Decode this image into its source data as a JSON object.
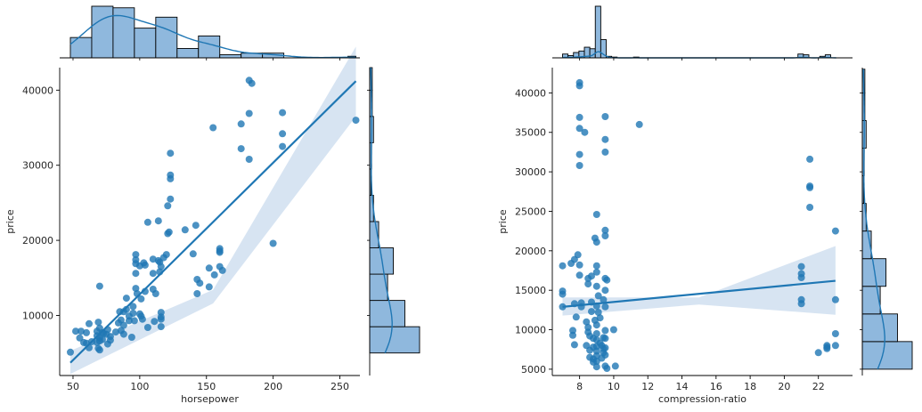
{
  "colors": {
    "main": "#1f77b4",
    "hist_fill": "#8fb8dd",
    "ci_fill": "#c9dbee",
    "axis": "#000000",
    "text": "#262626"
  },
  "chart_data": [
    {
      "type": "scatter",
      "title": "",
      "xlabel": "horsepower",
      "ylabel": "price",
      "xlim": [
        40,
        265
      ],
      "ylim": [
        2000,
        43000
      ],
      "xticks": [
        50,
        100,
        150,
        200,
        250
      ],
      "yticks": [
        10000,
        20000,
        30000,
        40000
      ],
      "points": [
        [
          48,
          5100
        ],
        [
          52,
          7900
        ],
        [
          55,
          7000
        ],
        [
          56,
          7900
        ],
        [
          58,
          6400
        ],
        [
          60,
          7700
        ],
        [
          60,
          6300
        ],
        [
          62,
          5700
        ],
        [
          62,
          8900
        ],
        [
          64,
          6500
        ],
        [
          68,
          7900
        ],
        [
          68,
          7300
        ],
        [
          68,
          6400
        ],
        [
          69,
          9100
        ],
        [
          69,
          5600
        ],
        [
          70,
          7000
        ],
        [
          70,
          6600
        ],
        [
          70,
          13900
        ],
        [
          70,
          8300
        ],
        [
          70,
          5400
        ],
        [
          72,
          7700
        ],
        [
          72,
          6800
        ],
        [
          73,
          7600
        ],
        [
          75,
          7500
        ],
        [
          76,
          6200
        ],
        [
          76,
          8100
        ],
        [
          78,
          7200
        ],
        [
          78,
          6700
        ],
        [
          82,
          7800
        ],
        [
          84,
          9000
        ],
        [
          85,
          10500
        ],
        [
          86,
          8000
        ],
        [
          86,
          9400
        ],
        [
          88,
          8700
        ],
        [
          88,
          10500
        ],
        [
          88,
          7500
        ],
        [
          90,
          12300
        ],
        [
          90,
          10800
        ],
        [
          92,
          9300
        ],
        [
          92,
          9900
        ],
        [
          94,
          7100
        ],
        [
          95,
          11200
        ],
        [
          95,
          10300
        ],
        [
          96,
          9300
        ],
        [
          97,
          13600
        ],
        [
          97,
          16900
        ],
        [
          97,
          18100
        ],
        [
          97,
          17400
        ],
        [
          97,
          15600
        ],
        [
          98,
          12900
        ],
        [
          100,
          10200
        ],
        [
          100,
          16600
        ],
        [
          101,
          9900
        ],
        [
          101,
          12200
        ],
        [
          102,
          9500
        ],
        [
          103,
          17000
        ],
        [
          104,
          13200
        ],
        [
          104,
          16700
        ],
        [
          106,
          8400
        ],
        [
          106,
          22400
        ],
        [
          110,
          13500
        ],
        [
          110,
          17500
        ],
        [
          110,
          15600
        ],
        [
          111,
          9200
        ],
        [
          112,
          12900
        ],
        [
          114,
          22600
        ],
        [
          114,
          17300
        ],
        [
          115,
          17100
        ],
        [
          115,
          15800
        ],
        [
          116,
          9500
        ],
        [
          116,
          10400
        ],
        [
          116,
          16500
        ],
        [
          116,
          9800
        ],
        [
          116,
          8500
        ],
        [
          118,
          17700
        ],
        [
          120,
          18100
        ],
        [
          121,
          24600
        ],
        [
          121,
          20900
        ],
        [
          122,
          21100
        ],
        [
          123,
          31600
        ],
        [
          123,
          28200
        ],
        [
          123,
          28700
        ],
        [
          123,
          25500
        ],
        [
          134,
          21400
        ],
        [
          140,
          18200
        ],
        [
          142,
          22000
        ],
        [
          143,
          14800
        ],
        [
          143,
          12900
        ],
        [
          145,
          14300
        ],
        [
          152,
          13800
        ],
        [
          152,
          16300
        ],
        [
          155,
          35000
        ],
        [
          156,
          15400
        ],
        [
          160,
          18400
        ],
        [
          160,
          18600
        ],
        [
          160,
          18900
        ],
        [
          160,
          16500
        ],
        [
          162,
          16000
        ],
        [
          176,
          32200
        ],
        [
          176,
          35500
        ],
        [
          182,
          36900
        ],
        [
          182,
          30800
        ],
        [
          182,
          41300
        ],
        [
          184,
          40900
        ],
        [
          200,
          19600
        ],
        [
          207,
          32500
        ],
        [
          207,
          34200
        ],
        [
          207,
          37000
        ],
        [
          262,
          36000
        ]
      ],
      "fit": {
        "x0": 48,
        "y0": 3700,
        "x1": 262,
        "y1": 41200,
        "ci0": [
          2200,
          5300
        ],
        "cim": [
          11600,
          13400
        ],
        "ci1": [
          36500,
          45800
        ]
      },
      "marg_x": {
        "bins": [
          48,
          64,
          80,
          96,
          112,
          128,
          144,
          160,
          176,
          192,
          208,
          224,
          240,
          256,
          262
        ],
        "counts": [
          13,
          33,
          32,
          19,
          26,
          6,
          14,
          2,
          3,
          3,
          0,
          0,
          0,
          1
        ]
      },
      "marg_y": {
        "bins": [
          5000,
          8500,
          12000,
          15500,
          19000,
          22500,
          26000,
          29500,
          33000,
          36500,
          40000,
          43000
        ],
        "counts": [
          78,
          55,
          28,
          37,
          14,
          6,
          2,
          3,
          6,
          4,
          4
        ]
      }
    },
    {
      "type": "scatter",
      "title": "",
      "xlabel": "compression-ratio",
      "ylabel": "price",
      "xlim": [
        6.4,
        24
      ],
      "ylim": [
        4200,
        43200
      ],
      "xticks": [
        8,
        10,
        12,
        14,
        16,
        18,
        20,
        22
      ],
      "yticks": [
        5000,
        10000,
        15000,
        20000,
        25000,
        30000,
        35000,
        40000
      ],
      "points": [
        [
          7,
          12900
        ],
        [
          7,
          14500
        ],
        [
          7,
          14900
        ],
        [
          7,
          18100
        ],
        [
          7.5,
          18400
        ],
        [
          7.6,
          9300
        ],
        [
          7.6,
          9900
        ],
        [
          7.7,
          18900
        ],
        [
          7.7,
          13300
        ],
        [
          7.7,
          8100
        ],
        [
          7.8,
          11600
        ],
        [
          7.9,
          19500
        ],
        [
          8,
          41300
        ],
        [
          8,
          40900
        ],
        [
          8,
          36900
        ],
        [
          8,
          35500
        ],
        [
          8,
          32200
        ],
        [
          8,
          30800
        ],
        [
          8,
          18200
        ],
        [
          8,
          16900
        ],
        [
          8.1,
          13400
        ],
        [
          8.1,
          12900
        ],
        [
          8.3,
          35000
        ],
        [
          8.4,
          8000
        ],
        [
          8.4,
          11000
        ],
        [
          8.5,
          16500
        ],
        [
          8.5,
          15800
        ],
        [
          8.5,
          10300
        ],
        [
          8.5,
          9700
        ],
        [
          8.6,
          9200
        ],
        [
          8.6,
          7400
        ],
        [
          8.6,
          6500
        ],
        [
          8.7,
          13500
        ],
        [
          8.7,
          16800
        ],
        [
          8.7,
          12300
        ],
        [
          8.8,
          8900
        ],
        [
          8.8,
          7800
        ],
        [
          8.8,
          6300
        ],
        [
          8.8,
          5900
        ],
        [
          8.9,
          11200
        ],
        [
          8.9,
          21600
        ],
        [
          9,
          24600
        ],
        [
          9,
          21100
        ],
        [
          9,
          17300
        ],
        [
          9,
          18100
        ],
        [
          9,
          15500
        ],
        [
          9,
          13000
        ],
        [
          9,
          10600
        ],
        [
          9,
          9500
        ],
        [
          9,
          8700
        ],
        [
          9,
          7900
        ],
        [
          9,
          7300
        ],
        [
          9,
          6700
        ],
        [
          9,
          6000
        ],
        [
          9,
          5300
        ],
        [
          9.1,
          14300
        ],
        [
          9.1,
          12200
        ],
        [
          9.2,
          11500
        ],
        [
          9.2,
          8300
        ],
        [
          9.3,
          8000
        ],
        [
          9.3,
          6400
        ],
        [
          9.4,
          13800
        ],
        [
          9.4,
          9000
        ],
        [
          9.4,
          7600
        ],
        [
          9.4,
          7100
        ],
        [
          9.5,
          37000
        ],
        [
          9.5,
          34100
        ],
        [
          9.5,
          32500
        ],
        [
          9.5,
          22600
        ],
        [
          9.5,
          21900
        ],
        [
          9.5,
          16500
        ],
        [
          9.5,
          15000
        ],
        [
          9.5,
          12900
        ],
        [
          9.5,
          9900
        ],
        [
          9.5,
          8900
        ],
        [
          9.5,
          7700
        ],
        [
          9.5,
          6800
        ],
        [
          9.5,
          5400
        ],
        [
          9.6,
          5100
        ],
        [
          9.6,
          16300
        ],
        [
          10,
          10000
        ],
        [
          10.1,
          5400
        ],
        [
          11.5,
          36000
        ],
        [
          21,
          18000
        ],
        [
          21,
          17100
        ],
        [
          21,
          16600
        ],
        [
          21,
          13800
        ],
        [
          21,
          13300
        ],
        [
          21.5,
          31600
        ],
        [
          21.5,
          28200
        ],
        [
          21.5,
          28000
        ],
        [
          21.5,
          25500
        ],
        [
          22,
          7100
        ],
        [
          22.5,
          7800
        ],
        [
          22.5,
          7600
        ],
        [
          22.5,
          8000
        ],
        [
          23,
          22500
        ],
        [
          23,
          13800
        ],
        [
          23,
          9500
        ],
        [
          23,
          8000
        ]
      ],
      "fit": {
        "x0": 7,
        "y0": 12900,
        "x1": 23,
        "y1": 16200,
        "ci0": [
          11800,
          14100
        ],
        "cim": [
          13200,
          14100
        ],
        "ci1": [
          11900,
          20600
        ]
      },
      "marg_x": {
        "bins": [
          7,
          7.32,
          7.64,
          7.96,
          8.28,
          8.6,
          8.92,
          9.24,
          9.56,
          9.88,
          10.2,
          10.52,
          10.84,
          11.16,
          11.48,
          11.8,
          20.8,
          21.12,
          21.44,
          21.76,
          22.08,
          22.4,
          22.72,
          23.04
        ],
        "counts": [
          5,
          3,
          7,
          9,
          14,
          12,
          68,
          24,
          2,
          1,
          0,
          0,
          0,
          1,
          0,
          0,
          5,
          4,
          0,
          0,
          2,
          4,
          0
        ]
      },
      "marg_y": {
        "bins": [
          5000,
          8500,
          12000,
          15500,
          19000,
          22500,
          26000,
          29500,
          33000,
          36500,
          40000,
          43000
        ],
        "counts": [
          78,
          55,
          28,
          37,
          14,
          6,
          2,
          3,
          6,
          4,
          4
        ]
      }
    }
  ]
}
